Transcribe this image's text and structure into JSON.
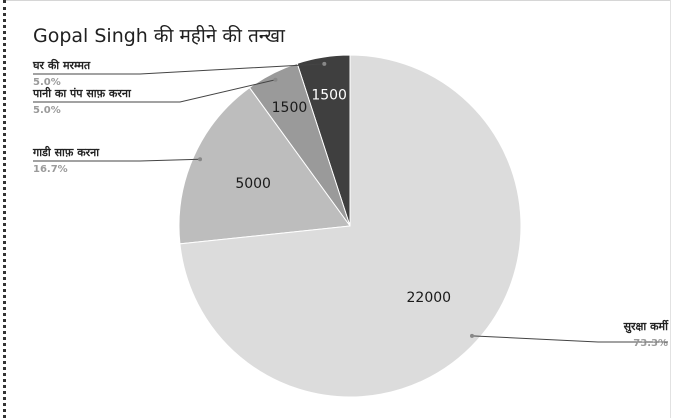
{
  "chart_data": {
    "type": "pie",
    "title": "Gopal Singh की महीने की तन्खा",
    "start_angle_deg": 0,
    "slices": [
      {
        "label": "घर की मरम्मत",
        "value": 1500,
        "value_label": "1500",
        "percent": "5.0%",
        "color": "#3f3f3f",
        "value_text_color": "#ffffff"
      },
      {
        "label": "पानी का पंप साफ़ करना",
        "value": 1500,
        "value_label": "1500",
        "percent": "5.0%",
        "color": "#9a9a9a",
        "value_text_color": "#1a1a1a"
      },
      {
        "label": "गाडी साफ़ करना",
        "value": 5000,
        "value_label": "5000",
        "percent": "16.7%",
        "color": "#bdbdbd",
        "value_text_color": "#1a1a1a"
      },
      {
        "label": "सुरक्षा कर्मी",
        "value": 22000,
        "value_label": "22000",
        "percent": "73.3%",
        "color": "#dcdcdc",
        "value_text_color": "#1a1a1a"
      }
    ]
  }
}
